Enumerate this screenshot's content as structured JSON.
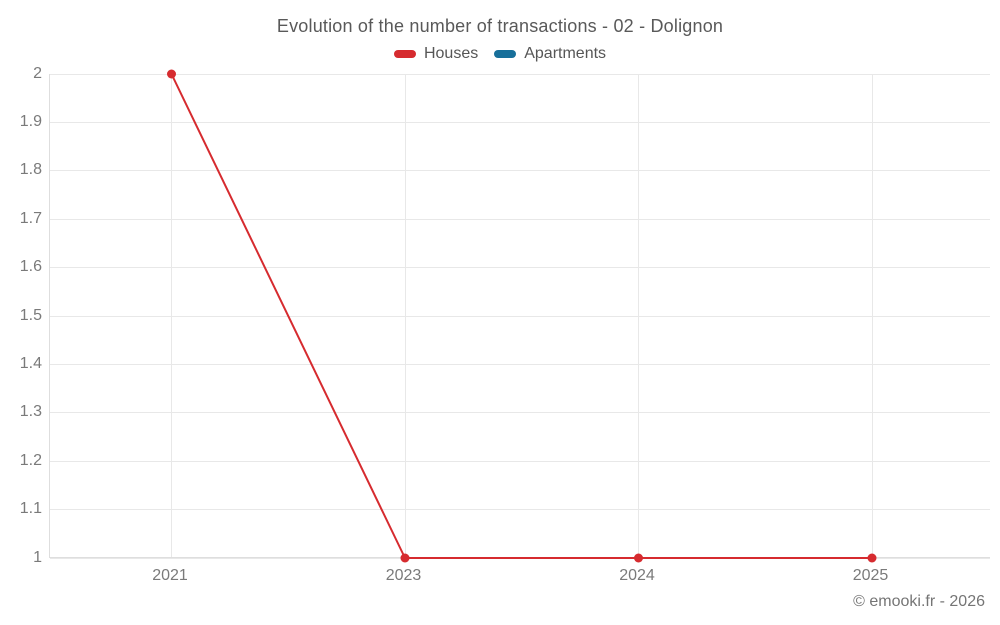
{
  "title": "Evolution of the number of transactions - 02 - Dolignon",
  "legend": [
    {
      "label": "Houses",
      "color": "#d62b2f"
    },
    {
      "label": "Apartments",
      "color": "#176f9a"
    }
  ],
  "footer": {
    "copyright": "© emooki.fr - 2026"
  },
  "colors": {
    "houses_series": "#d62b2f",
    "apartments_series": "#176f9a",
    "gridline": "#e8e8e8",
    "axis_line": "#dedede",
    "title_text": "#595959",
    "tick_text": "#7a7a7a"
  },
  "chart_data": {
    "type": "line",
    "title": "Evolution of the number of transactions - 02 - Dolignon",
    "categories": [
      "2021",
      "2023",
      "2024",
      "2025"
    ],
    "series": [
      {
        "name": "Houses",
        "color": "#d62b2f",
        "values": [
          2,
          1,
          1,
          1
        ]
      },
      {
        "name": "Apartments",
        "color": "#176f9a",
        "values": []
      }
    ],
    "xlabel": "",
    "ylabel": "",
    "ylim": [
      1,
      2
    ],
    "yticks": [
      1,
      1.1,
      1.2,
      1.3,
      1.4,
      1.5,
      1.6,
      1.7,
      1.8,
      1.9,
      2
    ],
    "grid": true,
    "legend_position": "top",
    "marker": "circle"
  }
}
